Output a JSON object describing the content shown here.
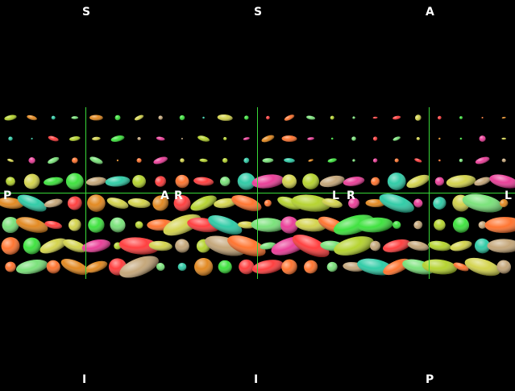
{
  "colors": {
    "background": "#000000",
    "crosshair": "#38d838",
    "label": "#ffffff"
  },
  "top_labels": [
    "S",
    "S",
    "A"
  ],
  "bottom_labels": [
    "I",
    "I",
    "P"
  ],
  "side_labels": [
    "P",
    "A",
    "R",
    "L",
    "R",
    "L"
  ]
}
